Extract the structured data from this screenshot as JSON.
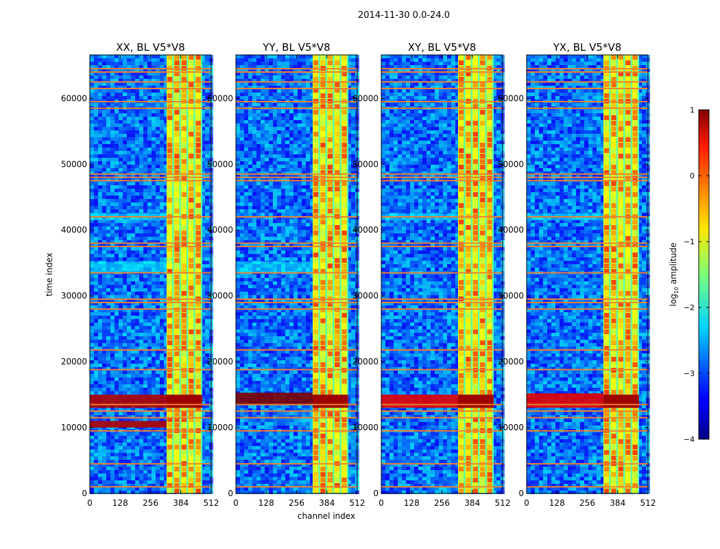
{
  "chart_data": {
    "type": "heatmap",
    "suptitle": "2014-11-30 0.0-24.0",
    "xlabel": "channel index",
    "ylabel": "time index",
    "xlim": [
      0,
      512
    ],
    "ylim": [
      0,
      66600
    ],
    "x_ticks": [
      0,
      128,
      256,
      384,
      512
    ],
    "y_ticks": [
      0,
      10000,
      20000,
      30000,
      40000,
      50000,
      60000
    ],
    "x_tick_labels": [
      "0",
      "128",
      "256",
      "384",
      "512"
    ],
    "y_tick_labels": [
      "0",
      "10000",
      "20000",
      "30000",
      "40000",
      "50000",
      "60000"
    ],
    "panels": [
      {
        "title": "XX, BL V5*V8",
        "rfi_bands": [
          [
            13000,
            15000
          ],
          [
            10000,
            11000
          ],
          [
            33500,
            35200
          ],
          [
            41500,
            42500
          ]
        ],
        "band_level": 0.95
      },
      {
        "title": "YY, BL V5*V8",
        "rfi_bands": [
          [
            13500,
            15300
          ],
          [
            33500,
            35200
          ]
        ],
        "band_level": 1.0
      },
      {
        "title": "XY, BL V5*V8",
        "rfi_bands": [
          [
            13000,
            15000
          ],
          [
            41500,
            42500
          ]
        ],
        "band_level": 0.9
      },
      {
        "title": "YX, BL V5*V8",
        "rfi_bands": [
          [
            13000,
            15200
          ],
          [
            41500,
            42500
          ]
        ],
        "band_level": 0.9
      }
    ],
    "high_channel_band": [
      324,
      474
    ],
    "flag_lines": [
      1000,
      4500,
      9500,
      11500,
      12500,
      13500,
      18800,
      21800,
      28000,
      29000,
      29500,
      33500,
      37500,
      38000,
      42000,
      47500,
      48000,
      48500,
      58500,
      59500,
      61500,
      62500,
      64000,
      64500
    ],
    "colorbar": {
      "label": "log10 amplitude",
      "range": [
        -4,
        1
      ],
      "ticks": [
        1,
        0,
        -1,
        -2,
        -3,
        -4
      ],
      "tick_labels": [
        "1",
        "0",
        "−1",
        "−2",
        "−3",
        "−4"
      ],
      "colormap": "jet"
    }
  }
}
